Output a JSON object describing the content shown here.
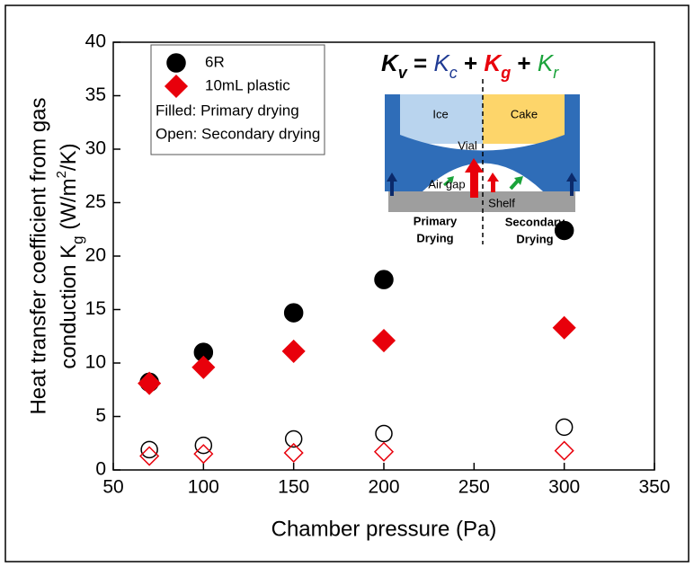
{
  "chart_data": {
    "type": "scatter",
    "x": [
      70,
      100,
      150,
      200,
      300
    ],
    "series": [
      {
        "name": "6R",
        "color": "#000000",
        "marker": "circle",
        "values": [
          8.2,
          11.0,
          14.7,
          17.8,
          22.4
        ],
        "open_values": [
          1.9,
          2.3,
          2.9,
          3.4,
          4.0
        ]
      },
      {
        "name": "10mL plastic",
        "color": "#e8000b",
        "marker": "diamond",
        "values": [
          8.1,
          9.6,
          11.1,
          12.1,
          13.3
        ],
        "open_values": [
          1.3,
          1.5,
          1.6,
          1.7,
          1.8
        ]
      }
    ],
    "legend_notes": [
      "Filled: Primary drying",
      "Open: Secondary drying"
    ],
    "xlabel": "Chamber pressure (Pa)",
    "ylabel": {
      "line1": "Heat transfer coefficient from gas",
      "line2": [
        {
          "text": "conduction K"
        },
        {
          "text": "g",
          "sub": true
        },
        {
          "text": " (W/m"
        },
        {
          "text": "2",
          "sup": true
        },
        {
          "text": "/K)"
        }
      ]
    },
    "xlim": [
      50,
      350
    ],
    "xticks": [
      50,
      100,
      150,
      200,
      250,
      300,
      350
    ],
    "ylim": [
      0,
      40
    ],
    "yticks": [
      0,
      5,
      10,
      15,
      20,
      25,
      30,
      35,
      40
    ],
    "legend": "upper left",
    "inset": {
      "equation": [
        {
          "text": "K",
          "sub": "v",
          "color": "#000000"
        },
        {
          "text": " = "
        },
        {
          "text": "K",
          "sub": "c",
          "color": "#1f3a93",
          "italic": true
        },
        {
          "text": " + "
        },
        {
          "text": "K",
          "sub": "g",
          "color": "#e8000b",
          "bold": true
        },
        {
          "text": " + "
        },
        {
          "text": "K",
          "sub": "r",
          "color": "#1aa33a",
          "italic": true
        }
      ],
      "labels": [
        "Ice",
        "Cake",
        "Vial",
        "Air gap",
        "Shelf"
      ],
      "left_caption": [
        "Primary",
        "Drying"
      ],
      "right_caption": [
        "Secondary",
        "Drying"
      ]
    }
  }
}
